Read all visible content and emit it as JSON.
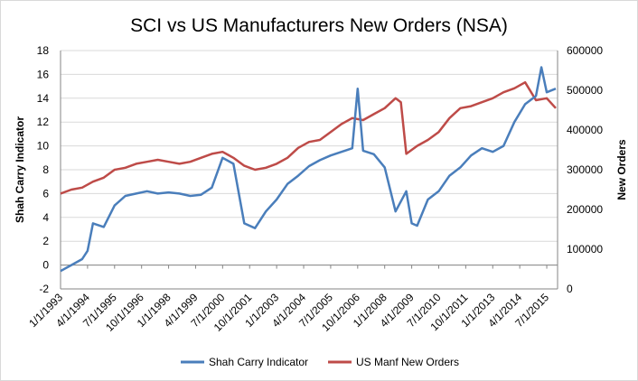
{
  "chart_data": {
    "type": "line",
    "title": "SCI vs US Manufacturers New Orders (NSA)",
    "ylabel_left": "Shah Carry Indicator",
    "ylabel_right": "New Orders",
    "ylim_left": [
      -2,
      18
    ],
    "ylim_right": [
      0,
      600000
    ],
    "yticks_left": [
      "-2",
      "0",
      "2",
      "4",
      "6",
      "8",
      "10",
      "12",
      "14",
      "16",
      "18"
    ],
    "yticks_right": [
      "0",
      "100000",
      "200000",
      "300000",
      "400000",
      "500000",
      "600000"
    ],
    "xticks": [
      "1/1/1993",
      "4/1/1994",
      "7/1/1995",
      "10/1/1996",
      "1/1/1998",
      "4/1/1999",
      "7/1/2000",
      "10/1/2001",
      "1/1/2003",
      "4/1/2004",
      "7/1/2005",
      "10/1/2006",
      "1/1/2008",
      "4/1/2009",
      "7/1/2010",
      "10/1/2011",
      "1/1/2013",
      "4/1/2014",
      "7/1/2015"
    ],
    "grid": "horizontal",
    "legend": "bottom",
    "series": [
      {
        "name": "Shah Carry Indicator",
        "axis": "left",
        "color": "#4a7ebb",
        "x": [
          "1993-01",
          "1993-07",
          "1994-01",
          "1994-04",
          "1994-07",
          "1995-01",
          "1995-07",
          "1996-01",
          "1996-07",
          "1997-01",
          "1997-07",
          "1998-01",
          "1998-07",
          "1999-01",
          "1999-07",
          "2000-01",
          "2000-07",
          "2001-01",
          "2001-07",
          "2002-01",
          "2002-07",
          "2003-01",
          "2003-07",
          "2004-01",
          "2004-07",
          "2005-01",
          "2005-07",
          "2006-01",
          "2006-07",
          "2006-10",
          "2007-01",
          "2007-07",
          "2008-01",
          "2008-07",
          "2009-01",
          "2009-04",
          "2009-07",
          "2010-01",
          "2010-07",
          "2011-01",
          "2011-07",
          "2012-01",
          "2012-07",
          "2013-01",
          "2013-07",
          "2014-01",
          "2014-07",
          "2015-01",
          "2015-04",
          "2015-07",
          "2015-12"
        ],
        "values": [
          -0.5,
          0,
          0.5,
          1.2,
          3.5,
          3.2,
          5,
          5.8,
          6,
          6.2,
          6,
          6.1,
          6,
          5.8,
          5.9,
          6.5,
          9,
          8.5,
          3.5,
          3.1,
          4.5,
          5.5,
          6.8,
          7.5,
          8.3,
          8.8,
          9.2,
          9.5,
          9.8,
          14.8,
          9.6,
          9.3,
          8.2,
          4.5,
          6.2,
          3.5,
          3.3,
          5.5,
          6.2,
          7.5,
          8.2,
          9.2,
          9.8,
          9.5,
          10,
          12,
          13.5,
          14.2,
          16.6,
          14.5,
          14.8
        ]
      },
      {
        "name": "US Manf New Orders",
        "axis": "right",
        "color": "#be4b48",
        "x": [
          "1993-01",
          "1993-07",
          "1994-01",
          "1994-07",
          "1995-01",
          "1995-07",
          "1996-01",
          "1996-07",
          "1997-01",
          "1997-07",
          "1998-01",
          "1998-07",
          "1999-01",
          "1999-07",
          "2000-01",
          "2000-07",
          "2001-01",
          "2001-07",
          "2002-01",
          "2002-07",
          "2003-01",
          "2003-07",
          "2004-01",
          "2004-07",
          "2005-01",
          "2005-07",
          "2006-01",
          "2006-07",
          "2007-01",
          "2007-07",
          "2008-01",
          "2008-07",
          "2008-10",
          "2009-01",
          "2009-07",
          "2010-01",
          "2010-07",
          "2011-01",
          "2011-07",
          "2012-01",
          "2012-07",
          "2013-01",
          "2013-07",
          "2014-01",
          "2014-07",
          "2015-01",
          "2015-07",
          "2015-12"
        ],
        "values": [
          240000,
          250000,
          255000,
          270000,
          280000,
          300000,
          305000,
          315000,
          320000,
          325000,
          320000,
          315000,
          320000,
          330000,
          340000,
          345000,
          330000,
          310000,
          300000,
          305000,
          315000,
          330000,
          355000,
          370000,
          375000,
          395000,
          415000,
          430000,
          425000,
          440000,
          455000,
          480000,
          470000,
          340000,
          360000,
          375000,
          395000,
          430000,
          455000,
          460000,
          470000,
          480000,
          495000,
          505000,
          520000,
          475000,
          480000,
          455000
        ]
      }
    ]
  }
}
